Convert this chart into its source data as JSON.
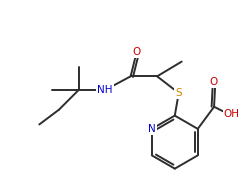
{
  "background": "#ffffff",
  "line_color": "#2d2d2d",
  "atom_colors": {
    "O": "#cc0000",
    "N": "#0000cc",
    "S": "#cc8800"
  },
  "line_width": 1.4,
  "font_size": 7.5
}
